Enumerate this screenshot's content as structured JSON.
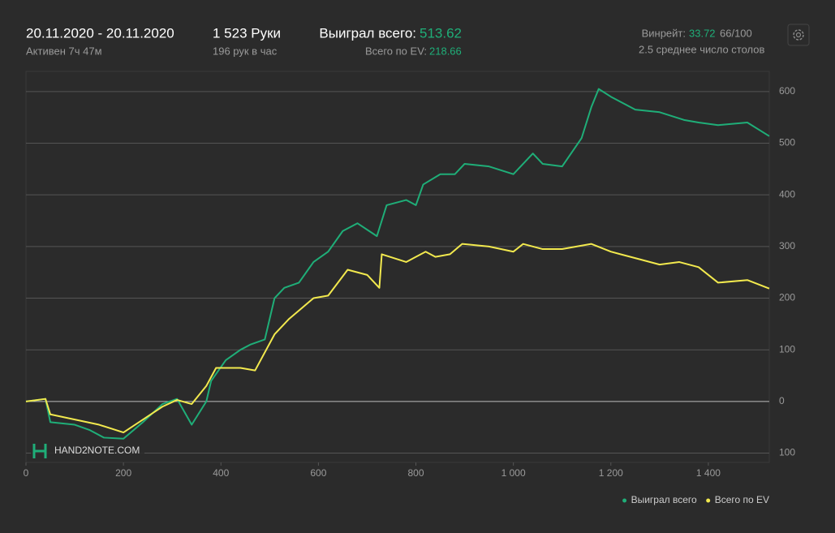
{
  "header": {
    "date_range": "20.11.2020 - 20.11.2020",
    "active": "Активен 7ч 47м",
    "hands": "1 523 Руки",
    "hands_per_hour": "196 рук в час",
    "won_label": "Выиграл всего:",
    "won_value": 513.62,
    "ev_label": "Всего по EV:",
    "ev_value": 218.66,
    "winrate_label": "Винрейт:",
    "winrate_value": 33.72,
    "winrate_sample": "66/100",
    "avg_tables": "2.5 среднее число столов"
  },
  "watermark": "HAND2NOTE.COM",
  "chart_data": {
    "type": "line",
    "xlim": [
      0,
      1525
    ],
    "ylim": [
      -118,
      639
    ],
    "xticks": [
      0,
      200,
      400,
      600,
      800,
      {
        "value": 1000,
        "label": "1 000"
      },
      {
        "value": 1200,
        "label": "1 200"
      },
      {
        "value": 1400,
        "label": "1 400"
      }
    ],
    "yticks": [
      {
        "value": -100,
        "label": "100"
      },
      0,
      100,
      200,
      300,
      400,
      500,
      600
    ],
    "grid": true,
    "legend": "bottom-right",
    "series": [
      {
        "name": "Выиграл всего",
        "color": "#1fae78",
        "x": [
          0,
          40,
          50,
          100,
          130,
          160,
          200,
          240,
          280,
          310,
          340,
          370,
          380,
          410,
          440,
          460,
          490,
          510,
          530,
          560,
          590,
          620,
          650,
          680,
          720,
          740,
          780,
          800,
          815,
          850,
          880,
          900,
          950,
          1000,
          1040,
          1060,
          1100,
          1140,
          1160,
          1175,
          1200,
          1250,
          1300,
          1350,
          1380,
          1420,
          1480,
          1525
        ],
        "values": [
          0,
          5,
          -40,
          -45,
          -55,
          -70,
          -72,
          -40,
          -5,
          5,
          -45,
          0,
          40,
          80,
          100,
          110,
          120,
          200,
          220,
          230,
          270,
          290,
          330,
          345,
          320,
          380,
          390,
          380,
          420,
          440,
          440,
          460,
          455,
          440,
          480,
          460,
          455,
          510,
          570,
          605,
          590,
          565,
          560,
          545,
          540,
          535,
          540,
          513.62
        ]
      },
      {
        "name": "Всего по EV",
        "color": "#f2e94e",
        "x": [
          0,
          40,
          50,
          100,
          150,
          200,
          240,
          280,
          310,
          340,
          370,
          390,
          440,
          470,
          510,
          540,
          590,
          620,
          660,
          700,
          725,
          730,
          780,
          820,
          840,
          870,
          895,
          950,
          1000,
          1020,
          1060,
          1100,
          1160,
          1200,
          1260,
          1300,
          1340,
          1380,
          1420,
          1480,
          1525
        ],
        "values": [
          0,
          5,
          -25,
          -35,
          -45,
          -60,
          -35,
          -10,
          3,
          -5,
          30,
          65,
          65,
          60,
          130,
          160,
          200,
          205,
          255,
          245,
          220,
          285,
          270,
          290,
          280,
          285,
          305,
          300,
          290,
          305,
          295,
          295,
          305,
          290,
          275,
          265,
          270,
          260,
          230,
          235,
          218.66
        ]
      }
    ]
  }
}
